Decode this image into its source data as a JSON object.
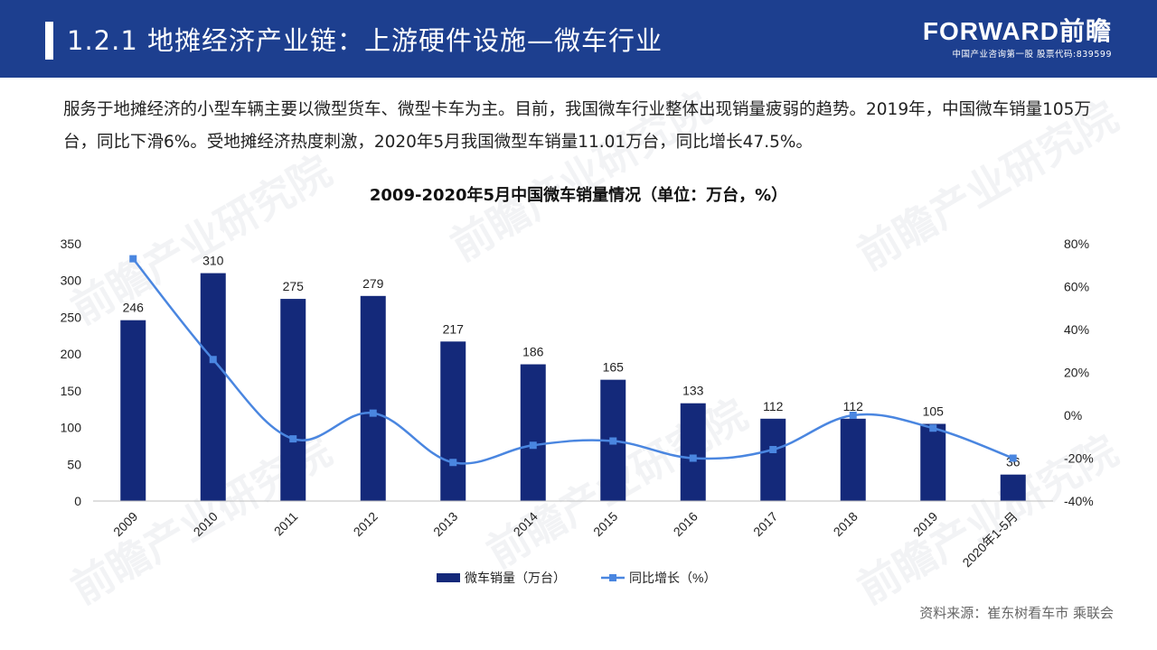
{
  "header": {
    "title": "1.2.1 地摊经济产业链：上游硬件设施—微车行业",
    "logo_main": "FORWARD前瞻",
    "logo_sub": "中国产业咨询第一股 股票代码:839599"
  },
  "intro": "服务于地摊经济的小型车辆主要以微型货车、微型卡车为主。目前，我国微车行业整体出现销量疲弱的趋势。2019年，中国微车销量105万台，同比下滑6%。受地摊经济热度刺激，2020年5月我国微型车销量11.01万台，同比增长47.5%。",
  "watermark": "前瞻产业研究院",
  "chart_data": {
    "type": "bar",
    "title": "2009-2020年5月中国微车销量情况（单位：万台，%）",
    "categories": [
      "2009",
      "2010",
      "2011",
      "2012",
      "2013",
      "2014",
      "2015",
      "2016",
      "2017",
      "2018",
      "2019",
      "2020年1-5月"
    ],
    "series": [
      {
        "name": "微车销量（万台）",
        "type": "bar",
        "axis": "left",
        "color": "#14297a",
        "values": [
          246,
          310,
          275,
          279,
          217,
          186,
          165,
          133,
          112,
          112,
          105,
          36
        ]
      },
      {
        "name": "同比增长（%）",
        "type": "line",
        "axis": "right",
        "color": "#4a86e0",
        "values": [
          73,
          26,
          -11,
          1,
          -22,
          -14,
          -12,
          -20,
          -16,
          0,
          -6,
          -20
        ]
      }
    ],
    "left_axis": {
      "min": 0,
      "max": 350,
      "step": 50,
      "ticks": [
        "0",
        "50",
        "100",
        "150",
        "200",
        "250",
        "300",
        "350"
      ]
    },
    "right_axis": {
      "min": -40,
      "max": 80,
      "step": 20,
      "ticks": [
        "-40%",
        "-20%",
        "0%",
        "20%",
        "40%",
        "60%",
        "80%"
      ]
    },
    "legend": [
      "微车销量（万台）",
      "同比增长（%）"
    ],
    "legend_position": "bottom"
  },
  "source": "资料来源：崔东树看车市 乘联会"
}
